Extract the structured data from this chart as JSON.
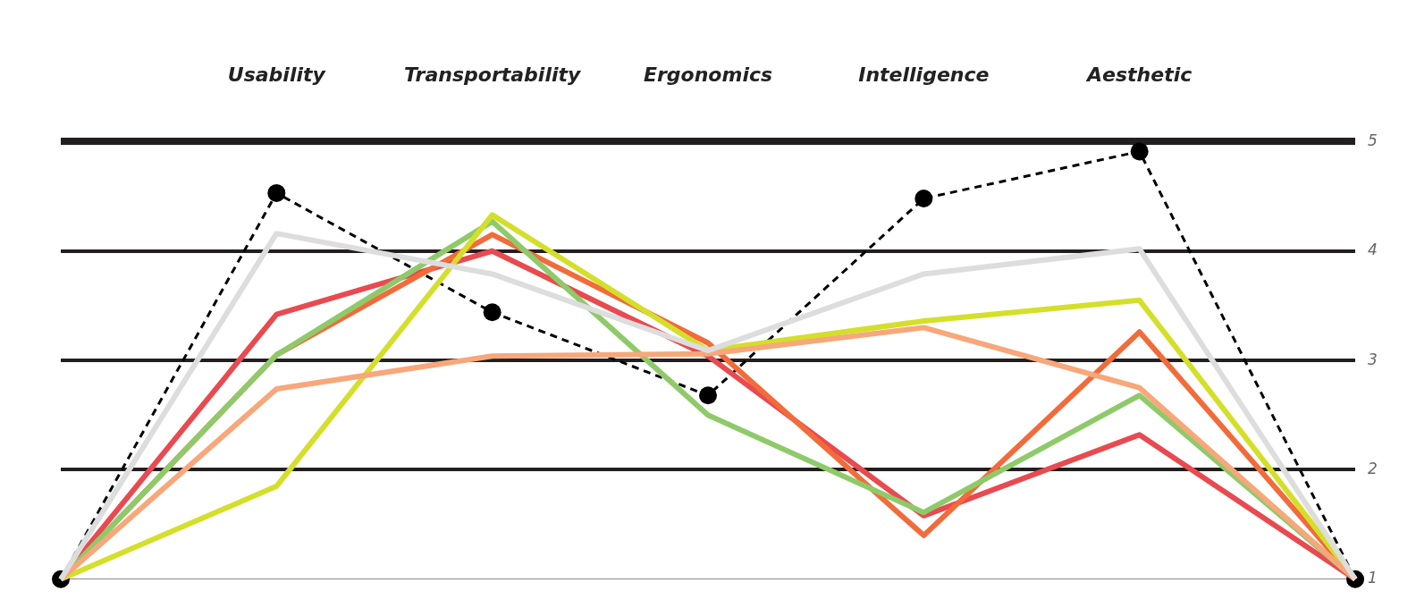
{
  "chart_data": {
    "type": "line",
    "categories": [
      null,
      "Usability",
      "Transportability",
      "Ergonomics",
      "Intelligence",
      "Aesthetic",
      null
    ],
    "ylim": [
      1,
      5
    ],
    "yticks": [
      1,
      2,
      3,
      4,
      5
    ],
    "grid": "y",
    "legend": false,
    "marker": "none",
    "line_style": "solid",
    "series": [
      {
        "color": "#dddddd",
        "values": [
          1,
          4.16,
          3.79,
          3.09,
          3.79,
          4.02,
          1
        ]
      },
      {
        "color": "#f7a77a",
        "values": [
          1,
          2.74,
          3.04,
          3.06,
          3.3,
          2.75,
          1
        ]
      },
      {
        "color": "#d4df2a",
        "values": [
          1,
          1.85,
          4.33,
          3.09,
          3.36,
          3.55,
          1
        ]
      },
      {
        "color": "#8fca6a",
        "values": [
          1,
          3.05,
          4.27,
          2.5,
          1.61,
          2.68,
          1
        ]
      },
      {
        "color": "#f26b3a",
        "values": [
          1,
          3.05,
          4.15,
          3.16,
          1.4,
          3.26,
          1
        ]
      },
      {
        "color": "#e84a50",
        "values": [
          1,
          3.42,
          4.0,
          3.04,
          1.58,
          2.32,
          1
        ]
      },
      {
        "color": "#000000",
        "values": [
          1,
          4.53,
          3.44,
          2.68,
          4.48,
          4.91,
          1
        ],
        "marker": "circle",
        "line_style": "dashed"
      }
    ]
  }
}
